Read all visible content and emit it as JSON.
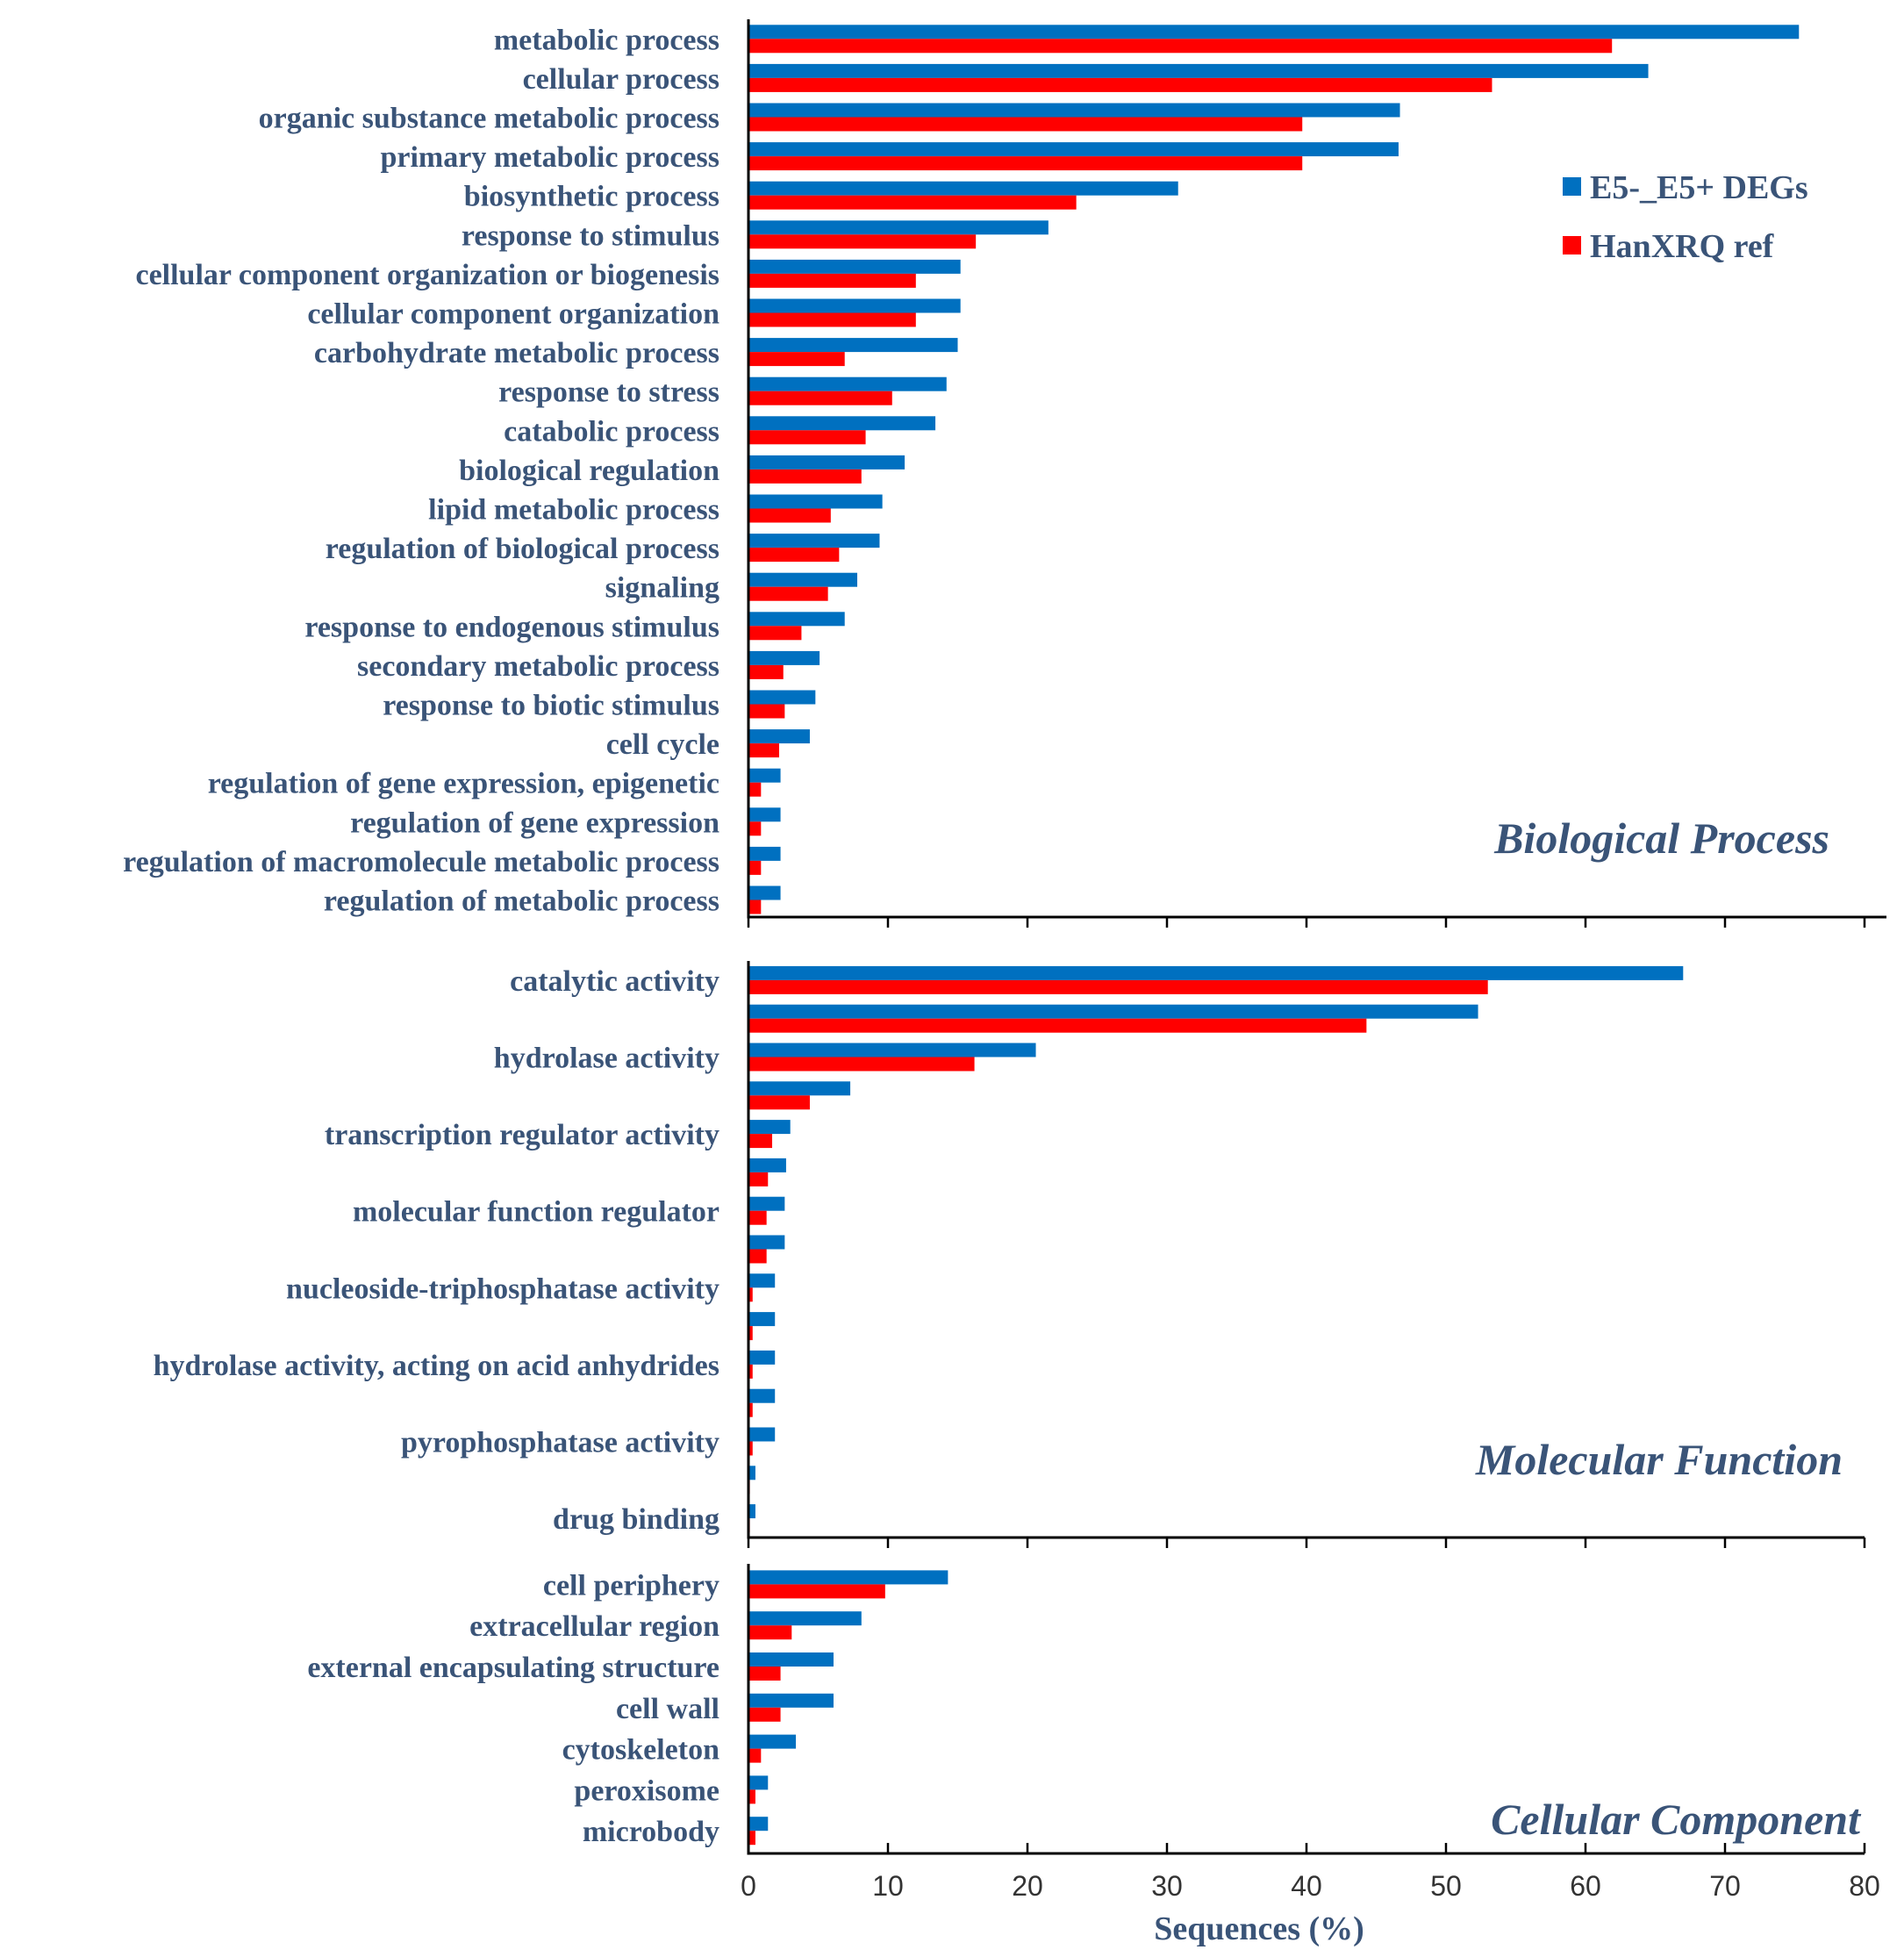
{
  "chart_data": {
    "type": "bar",
    "orientation": "horizontal",
    "xlabel": "Sequences (%)",
    "xlim": [
      0,
      80
    ],
    "xticks": [
      0,
      10,
      20,
      30,
      40,
      50,
      60,
      70,
      80
    ],
    "grid": false,
    "legend_position": "top-right",
    "legend": [
      {
        "name": "E5-_E5+ DEGs",
        "color": "#0070c0"
      },
      {
        "name": "HanXRQ ref",
        "color": "#ff0000"
      }
    ],
    "colors": {
      "degs": "#0070c0",
      "ref": "#ff0000",
      "axis": "#000000",
      "text": "#3a5478"
    },
    "panels": [
      {
        "title": "Biological Process",
        "categories": [
          {
            "label": "metabolic process",
            "degs": 75.3,
            "ref": 61.9
          },
          {
            "label": "cellular process",
            "degs": 64.5,
            "ref": 53.3
          },
          {
            "label": "organic substance metabolic process",
            "degs": 46.7,
            "ref": 39.7
          },
          {
            "label": "primary metabolic process",
            "degs": 46.6,
            "ref": 39.7
          },
          {
            "label": "biosynthetic process",
            "degs": 30.8,
            "ref": 23.5
          },
          {
            "label": "response to stimulus",
            "degs": 21.5,
            "ref": 16.3
          },
          {
            "label": "cellular component organization or biogenesis",
            "degs": 15.2,
            "ref": 12.0
          },
          {
            "label": "cellular component organization",
            "degs": 15.2,
            "ref": 12.0
          },
          {
            "label": "carbohydrate metabolic process",
            "degs": 15.0,
            "ref": 6.9
          },
          {
            "label": "response to stress",
            "degs": 14.2,
            "ref": 10.3
          },
          {
            "label": "catabolic process",
            "degs": 13.4,
            "ref": 8.4
          },
          {
            "label": "biological regulation",
            "degs": 11.2,
            "ref": 8.1
          },
          {
            "label": "lipid metabolic process",
            "degs": 9.6,
            "ref": 5.9
          },
          {
            "label": "regulation of biological process",
            "degs": 9.4,
            "ref": 6.5
          },
          {
            "label": "signaling",
            "degs": 7.8,
            "ref": 5.7
          },
          {
            "label": "response to endogenous stimulus",
            "degs": 6.9,
            "ref": 3.8
          },
          {
            "label": "secondary metabolic process",
            "degs": 5.1,
            "ref": 2.5
          },
          {
            "label": "response to biotic stimulus",
            "degs": 4.8,
            "ref": 2.6
          },
          {
            "label": "cell cycle",
            "degs": 4.4,
            "ref": 2.2
          },
          {
            "label": "regulation of gene expression, epigenetic",
            "degs": 2.3,
            "ref": 0.9
          },
          {
            "label": "regulation of gene expression",
            "degs": 2.3,
            "ref": 0.9
          },
          {
            "label": "regulation of macromolecule metabolic process",
            "degs": 2.3,
            "ref": 0.9
          },
          {
            "label": "regulation of metabolic process",
            "degs": 2.3,
            "ref": 0.9
          }
        ]
      },
      {
        "title": "Molecular Function",
        "categories": [
          {
            "label": "catalytic activity",
            "degs": 67.0,
            "ref": 53.0
          },
          {
            "label": "",
            "degs": 52.3,
            "ref": 44.3
          },
          {
            "label": "hydrolase activity",
            "degs": 20.6,
            "ref": 16.2
          },
          {
            "label": "",
            "degs": 7.3,
            "ref": 4.4
          },
          {
            "label": "transcription regulator activity",
            "degs": 3.0,
            "ref": 1.7
          },
          {
            "label": "",
            "degs": 2.7,
            "ref": 1.4
          },
          {
            "label": "molecular function regulator",
            "degs": 2.6,
            "ref": 1.3
          },
          {
            "label": "",
            "degs": 2.6,
            "ref": 1.3
          },
          {
            "label": "nucleoside-triphosphatase activity",
            "degs": 1.9,
            "ref": 0.3
          },
          {
            "label": "",
            "degs": 1.9,
            "ref": 0.3
          },
          {
            "label": "hydrolase activity, acting on acid anhydrides",
            "degs": 1.9,
            "ref": 0.3
          },
          {
            "label": "",
            "degs": 1.9,
            "ref": 0.3
          },
          {
            "label": "pyrophosphatase activity",
            "degs": 1.9,
            "ref": 0.3
          },
          {
            "label": "",
            "degs": 0.5,
            "ref": 0.1
          },
          {
            "label": "drug binding",
            "degs": 0.5,
            "ref": 0.1
          }
        ]
      },
      {
        "title": "Cellular Component",
        "categories": [
          {
            "label": "cell periphery",
            "degs": 14.3,
            "ref": 9.8
          },
          {
            "label": "extracellular region",
            "degs": 8.1,
            "ref": 3.1
          },
          {
            "label": "external encapsulating structure",
            "degs": 6.1,
            "ref": 2.3
          },
          {
            "label": "cell wall",
            "degs": 6.1,
            "ref": 2.3
          },
          {
            "label": "cytoskeleton",
            "degs": 3.4,
            "ref": 0.9
          },
          {
            "label": "peroxisome",
            "degs": 1.4,
            "ref": 0.5
          },
          {
            "label": "microbody",
            "degs": 1.4,
            "ref": 0.5
          }
        ]
      }
    ]
  }
}
